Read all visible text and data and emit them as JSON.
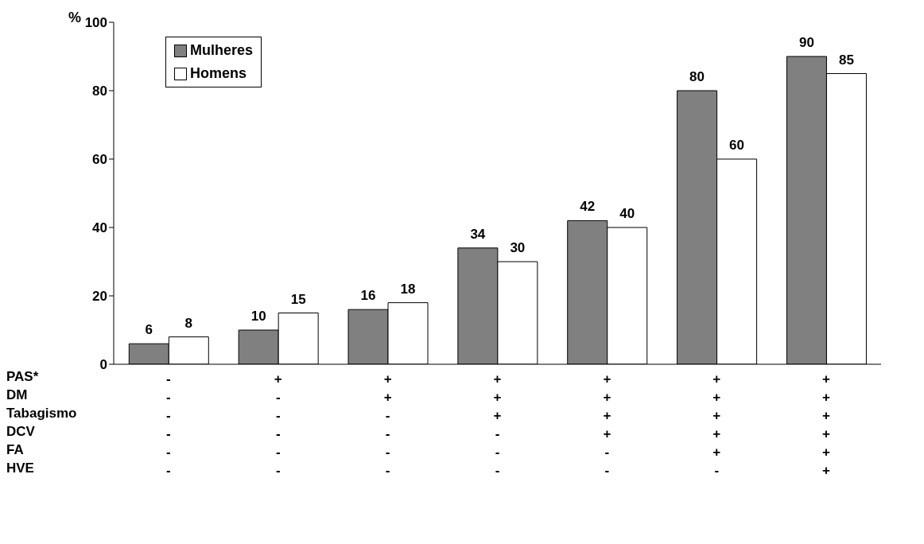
{
  "chart_data": {
    "type": "bar",
    "ylabel": "%",
    "categories": [
      "-\n-\n-\n-\n-\n-",
      "+\n-\n-\n-\n-\n-",
      "+\n+\n-\n-\n-\n-",
      "+\n+\n+\n-\n-\n-",
      "+\n+\n+\n+\n-\n-",
      "+\n+\n+\n+\n+\n-",
      "+\n+\n+\n+\n+\n+"
    ],
    "series": [
      {
        "name": "Mulheres",
        "color": "#808080",
        "values": [
          6,
          10,
          16,
          34,
          42,
          80,
          90
        ]
      },
      {
        "name": "Homens",
        "color": "#ffffff",
        "values": [
          8,
          15,
          18,
          30,
          40,
          60,
          85
        ]
      }
    ],
    "annotations": [
      "PAS*",
      "DM",
      "Tabagismo",
      "DCV",
      "FA",
      "HVE"
    ],
    "ylim": [
      0,
      100
    ],
    "yticks": [
      0,
      20,
      40,
      60,
      80,
      100
    ],
    "grid": false,
    "legend": "top left",
    "data_labels": true
  }
}
